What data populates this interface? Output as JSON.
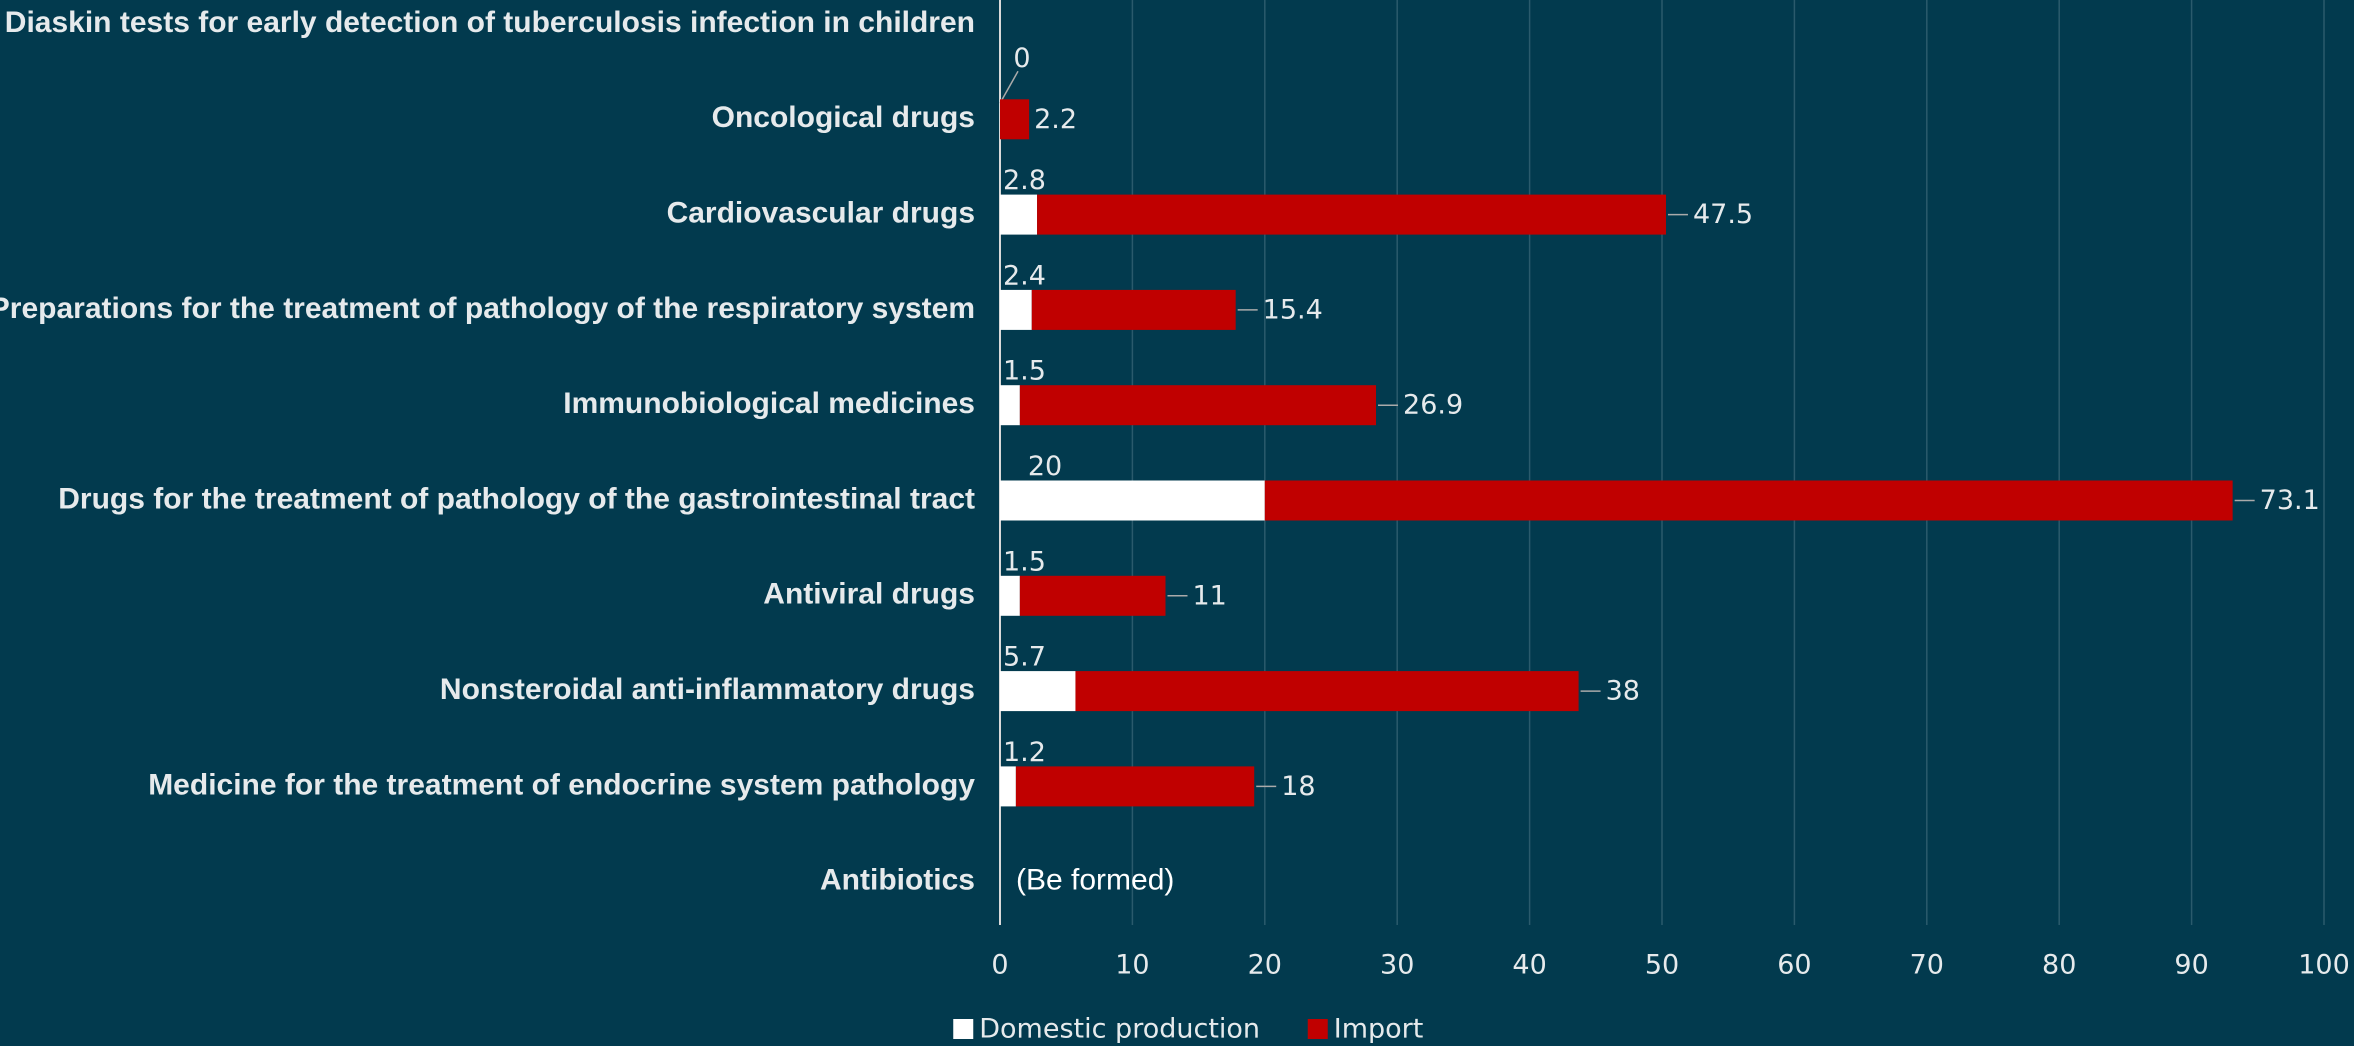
{
  "chart_data": {
    "type": "stacked_barh",
    "categories": [
      "Diaskin tests for early detection of tuberculosis infection in children",
      "Oncological drugs",
      "Cardiovascular drugs",
      "Preparations for the treatment of pathology of the respiratory system",
      "Immunobiological medicines",
      "Drugs for the treatment of pathology of the gastrointestinal tract",
      "Antiviral drugs",
      "Nonsteroidal anti-inflammatory drugs",
      "Medicine for the treatment of endocrine system pathology",
      "Antibiotics"
    ],
    "series": [
      {
        "name": "Domestic production",
        "color": "#ffffff",
        "values": [
          null,
          0,
          2.8,
          2.4,
          1.5,
          20,
          1.5,
          5.7,
          1.2,
          null
        ]
      },
      {
        "name": "Import",
        "color": "#c00000",
        "values": [
          null,
          2.2,
          47.5,
          15.4,
          26.9,
          73.1,
          11,
          38,
          18,
          null
        ]
      }
    ],
    "annotation": "(Be formed)",
    "xlim": [
      0,
      100
    ],
    "xticks": [
      0,
      10,
      20,
      30,
      40,
      50,
      60,
      70,
      80,
      90,
      100
    ],
    "grid": true,
    "legend": "bottom"
  }
}
